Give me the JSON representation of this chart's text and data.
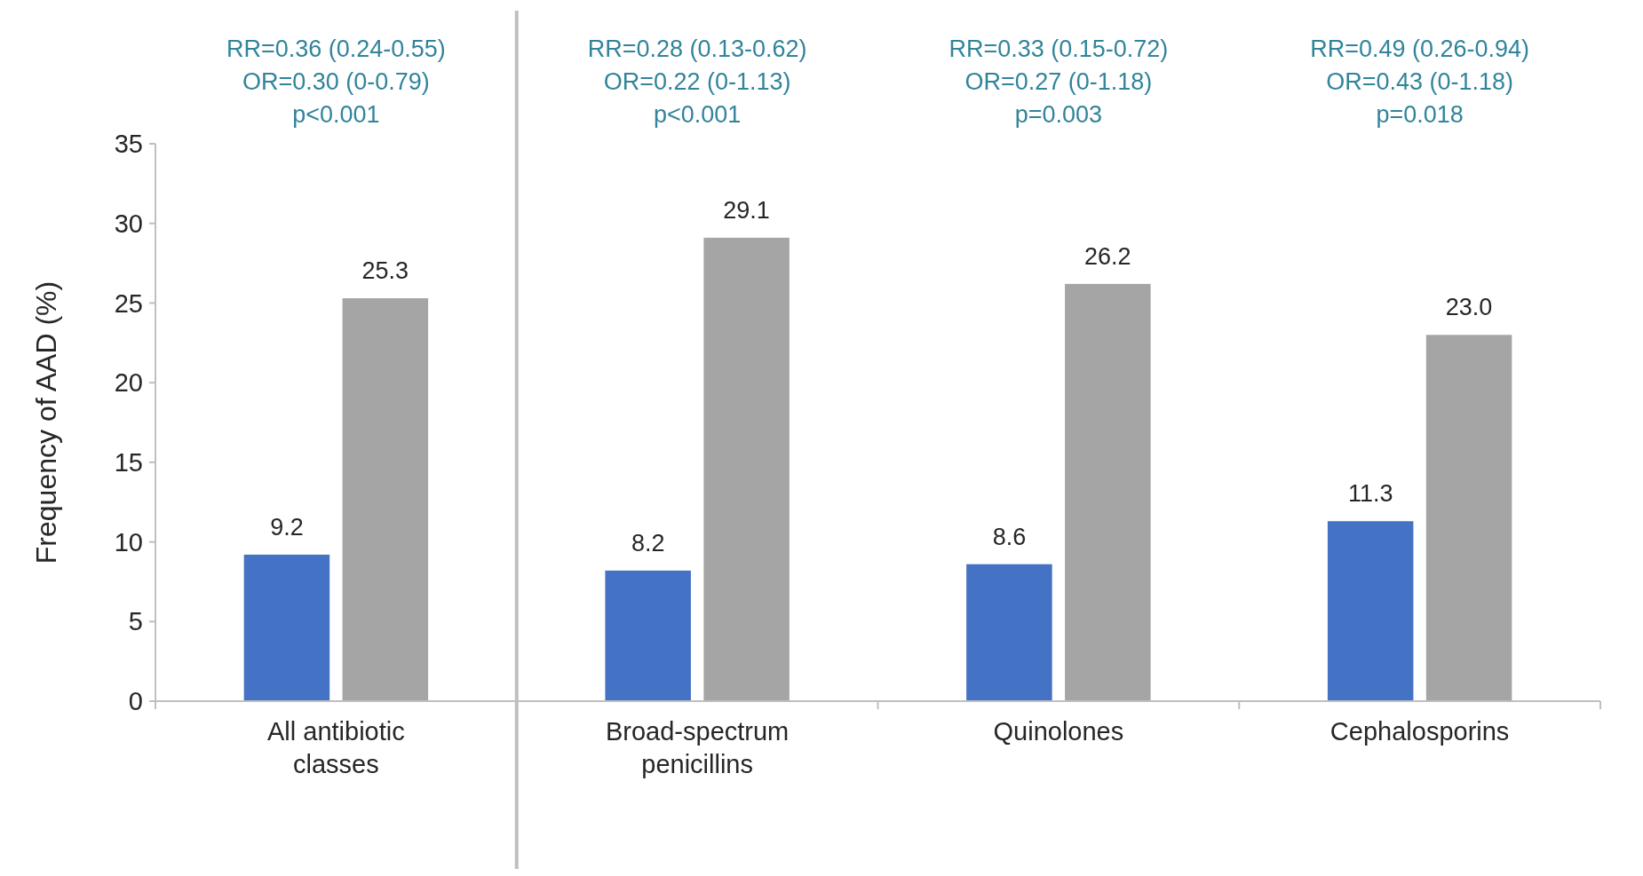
{
  "chart_data": {
    "type": "bar",
    "ylabel": "Frequency of AAD (%)",
    "categories": [
      "All antibiotic classes",
      "Broad-spectrum penicillins",
      "Quinolones",
      "Cephalosporins"
    ],
    "series": [
      {
        "color": "#4472c4",
        "values": [
          9.2,
          8.2,
          8.6,
          11.3
        ],
        "value_labels": [
          "9.2",
          "8.2",
          "8.6",
          "11.3"
        ]
      },
      {
        "color": "#a5a5a5",
        "values": [
          25.3,
          29.1,
          26.2,
          23.0
        ],
        "value_labels": [
          "25.3",
          "29.1",
          "26.2",
          "23.0"
        ]
      }
    ],
    "ylim": [
      0,
      35
    ],
    "yticks": [
      0,
      5,
      10,
      15,
      20,
      25,
      30,
      35
    ],
    "annotations": [
      "RR=0.36 (0.24-0.55)\nOR=0.30 (0-0.79)\np<0.001",
      "RR=0.28 (0.13-0.62)\nOR=0.22 (0-1.13)\np<0.001",
      "RR=0.33 (0.15-0.72)\nOR=0.27 (0-1.18)\np=0.003",
      "RR=0.49 (0.26-0.94)\nOR=0.43 (0-1.18)\np=0.018"
    ]
  }
}
